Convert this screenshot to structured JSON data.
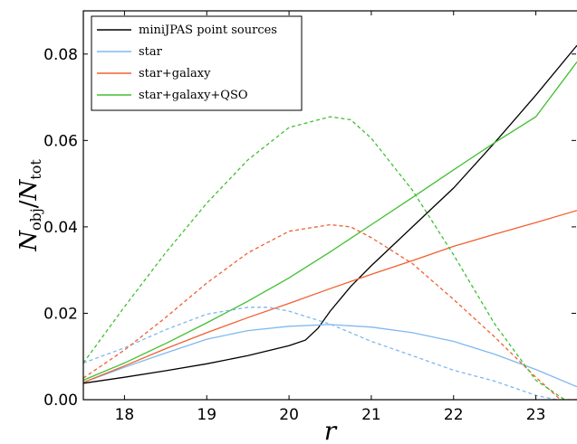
{
  "chart_data": {
    "type": "line",
    "xlabel": "r",
    "ylabel": "N_obj/N_tot",
    "ylabel_parts": {
      "base": "N",
      "sub1": "obj",
      "slash": "/",
      "base2": "N",
      "sub2": "tot"
    },
    "xlim": [
      17.5,
      23.5
    ],
    "ylim": [
      0.0,
      0.09
    ],
    "xticks": [
      18,
      19,
      20,
      21,
      22,
      23
    ],
    "yticks": [
      0.0,
      0.02,
      0.04,
      0.06,
      0.08
    ],
    "ytick_labels": [
      "0.00",
      "0.02",
      "0.04",
      "0.06",
      "0.08"
    ],
    "legend_position": "top-left",
    "series": [
      {
        "name": "miniJPAS point sources",
        "color": "#000000",
        "style": "solid",
        "x": [
          17.5,
          18.0,
          18.5,
          19.0,
          19.5,
          20.0,
          20.2,
          20.35,
          20.5,
          20.75,
          21.0,
          21.25,
          21.5,
          21.75,
          22.0,
          22.5,
          23.0,
          23.5
        ],
        "y": [
          0.0038,
          0.0052,
          0.0067,
          0.0083,
          0.0102,
          0.0125,
          0.0138,
          0.0165,
          0.0205,
          0.0262,
          0.031,
          0.0355,
          0.04,
          0.0445,
          0.049,
          0.0595,
          0.0705,
          0.082
        ]
      },
      {
        "name": "star",
        "color": "#7fb8f0",
        "style": "solid",
        "x": [
          17.5,
          18.0,
          18.5,
          19.0,
          19.5,
          20.0,
          20.5,
          21.0,
          21.5,
          22.0,
          22.5,
          23.0,
          23.5
        ],
        "y": [
          0.004,
          0.0075,
          0.0108,
          0.014,
          0.016,
          0.017,
          0.0174,
          0.0168,
          0.0155,
          0.0135,
          0.0105,
          0.007,
          0.003
        ]
      },
      {
        "name": "star+galaxy",
        "color": "#f06030",
        "style": "solid",
        "x": [
          17.5,
          18.0,
          18.5,
          19.0,
          19.5,
          20.0,
          20.5,
          21.0,
          21.5,
          22.0,
          22.5,
          23.0,
          23.5
        ],
        "y": [
          0.004,
          0.0078,
          0.0118,
          0.0155,
          0.019,
          0.0223,
          0.0257,
          0.029,
          0.0322,
          0.0355,
          0.0383,
          0.041,
          0.0438
        ]
      },
      {
        "name": "star+galaxy+QSO",
        "color": "#40c030",
        "style": "solid",
        "x": [
          17.5,
          18.0,
          18.5,
          19.0,
          19.5,
          20.0,
          20.5,
          21.0,
          21.5,
          22.0,
          22.5,
          23.0,
          23.5
        ],
        "y": [
          0.0045,
          0.0085,
          0.013,
          0.0178,
          0.0228,
          0.0282,
          0.0342,
          0.0405,
          0.0468,
          0.0532,
          0.0595,
          0.0655,
          0.0782
        ]
      },
      {
        "name": "",
        "color": "#7fb8f0",
        "style": "dashed",
        "x": [
          17.5,
          18.0,
          18.5,
          19.0,
          19.5,
          19.75,
          20.0,
          20.5,
          21.0,
          21.5,
          22.0,
          22.5,
          23.0,
          23.25
        ],
        "y": [
          0.0085,
          0.012,
          0.0162,
          0.0198,
          0.0214,
          0.0214,
          0.0205,
          0.0175,
          0.0135,
          0.0102,
          0.0068,
          0.0043,
          0.001,
          0.0
        ]
      },
      {
        "name": "",
        "color": "#f06030",
        "style": "dashed",
        "x": [
          17.5,
          18.0,
          18.5,
          19.0,
          19.5,
          20.0,
          20.5,
          20.75,
          21.0,
          21.5,
          22.0,
          22.5,
          23.0,
          23.3,
          23.5
        ],
        "y": [
          0.005,
          0.0115,
          0.019,
          0.027,
          0.034,
          0.039,
          0.0405,
          0.04,
          0.0375,
          0.0315,
          0.0232,
          0.0145,
          0.0052,
          0.0,
          0.0
        ]
      },
      {
        "name": "",
        "color": "#40c030",
        "style": "dashed",
        "x": [
          17.5,
          18.0,
          18.5,
          19.0,
          19.5,
          20.0,
          20.5,
          20.75,
          21.0,
          21.5,
          22.0,
          22.5,
          23.0,
          23.35
        ],
        "y": [
          0.0085,
          0.0215,
          0.034,
          0.0455,
          0.0555,
          0.063,
          0.0655,
          0.0648,
          0.0605,
          0.0485,
          0.0335,
          0.0175,
          0.0045,
          0.0
        ]
      }
    ]
  }
}
